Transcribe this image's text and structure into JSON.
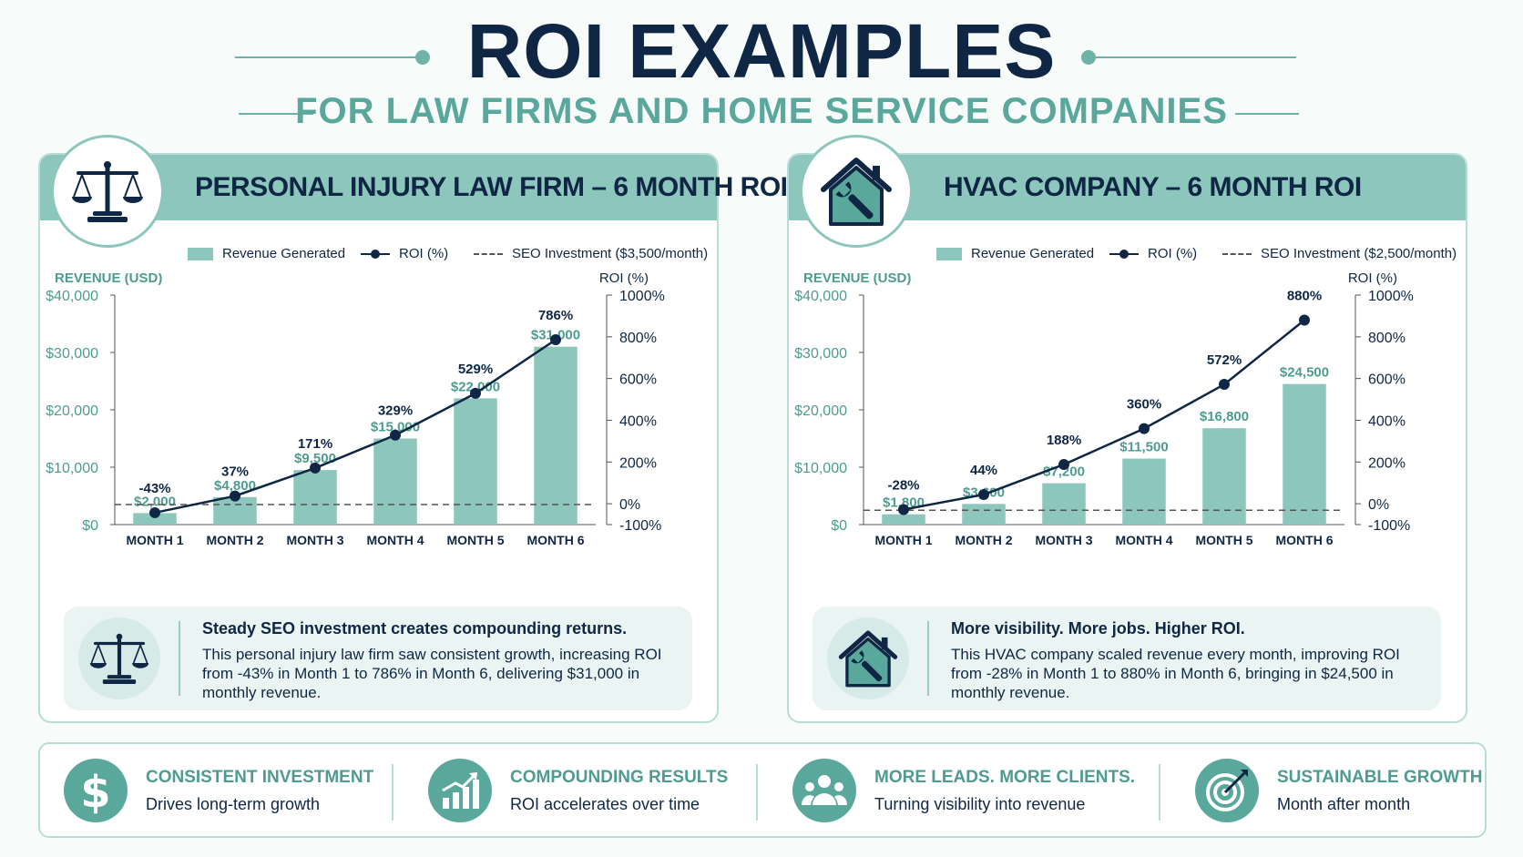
{
  "header": {
    "title": "ROI EXAMPLES",
    "subtitle": "FOR LAW FIRMS AND HOME SERVICE COMPANIES"
  },
  "colors": {
    "navy": "#0f2744",
    "teal": "#8cc6bd",
    "teal_dark": "#5aa89c",
    "axis_text": "#4e9c90"
  },
  "panels": [
    {
      "icon": "scales-of-justice-icon",
      "title": "PERSONAL INJURY LAW FIRM – 6 MONTH ROI",
      "legend": {
        "revenue": "Revenue Generated",
        "roi": "ROI (%)",
        "investment": "SEO Investment ($3,500/month)"
      },
      "note": {
        "heading": "Steady SEO investment creates compounding returns.",
        "body": "This personal injury law firm saw consistent growth, increasing ROI from -43% in Month 1 to 786% in Month 6, delivering $31,000 in monthly revenue."
      }
    },
    {
      "icon": "house-wrench-icon",
      "title": "HVAC COMPANY – 6 MONTH ROI",
      "legend": {
        "revenue": "Revenue Generated",
        "roi": "ROI (%)",
        "investment": "SEO Investment ($2,500/month)"
      },
      "note": {
        "heading": "More visibility. More jobs. Higher ROI.",
        "body": "This HVAC company scaled revenue every month, improving ROI from -28% in Month 1 to 880% in Month 6, bringing in $24,500 in monthly revenue."
      }
    }
  ],
  "chart_data": [
    {
      "type": "bar",
      "categories": [
        "MONTH 1",
        "MONTH 2",
        "MONTH 3",
        "MONTH 4",
        "MONTH 5",
        "MONTH 6"
      ],
      "ylabel": "REVENUE (USD)",
      "y2label": "ROI (%)",
      "ylim": [
        0,
        40000
      ],
      "y2lim": [
        -100,
        1000
      ],
      "yticks": [
        "$0",
        "$10,000",
        "$20,000",
        "$30,000",
        "$40,000"
      ],
      "y2ticks": [
        "-100%",
        "0%",
        "200%",
        "400%",
        "600%",
        "800%",
        "1000%"
      ],
      "series": [
        {
          "name": "Revenue Generated",
          "type": "bar",
          "values": [
            2000,
            4800,
            9500,
            15000,
            22000,
            31000
          ],
          "labels": [
            "$2,000",
            "$4,800",
            "$9,500",
            "$15,000",
            "$22,000",
            "$31,000"
          ]
        },
        {
          "name": "ROI (%)",
          "type": "line",
          "axis": "right",
          "values": [
            -43,
            37,
            171,
            329,
            529,
            786
          ],
          "labels": [
            "-43%",
            "37%",
            "171%",
            "329%",
            "529%",
            "786%"
          ]
        },
        {
          "name": "SEO Investment ($3,500/month)",
          "type": "reference-line",
          "value": 3500
        }
      ],
      "grid": false,
      "legend": "top"
    },
    {
      "type": "bar",
      "categories": [
        "MONTH 1",
        "MONTH 2",
        "MONTH 3",
        "MONTH 4",
        "MONTH 5",
        "MONTH 6"
      ],
      "ylabel": "REVENUE (USD)",
      "y2label": "ROI (%)",
      "ylim": [
        0,
        40000
      ],
      "y2lim": [
        -100,
        1000
      ],
      "yticks": [
        "$0",
        "$10,000",
        "$20,000",
        "$30,000",
        "$40,000"
      ],
      "y2ticks": [
        "-100%",
        "0%",
        "200%",
        "400%",
        "600%",
        "800%",
        "1000%"
      ],
      "series": [
        {
          "name": "Revenue Generated",
          "type": "bar",
          "values": [
            1800,
            3600,
            7200,
            11500,
            16800,
            24500
          ],
          "labels": [
            "$1,800",
            "$3,600",
            "$7,200",
            "$11,500",
            "$16,800",
            "$24,500"
          ]
        },
        {
          "name": "ROI (%)",
          "type": "line",
          "axis": "right",
          "values": [
            -28,
            44,
            188,
            360,
            572,
            880
          ],
          "labels": [
            "-28%",
            "44%",
            "188%",
            "360%",
            "572%",
            "880%"
          ]
        },
        {
          "name": "SEO Investment ($2,500/month)",
          "type": "reference-line",
          "value": 2500
        }
      ],
      "grid": false,
      "legend": "top"
    }
  ],
  "footer": [
    {
      "icon": "dollar-icon",
      "title": "CONSISTENT INVESTMENT",
      "subtitle": "Drives long-term growth"
    },
    {
      "icon": "growth-chart-icon",
      "title": "COMPOUNDING RESULTS",
      "subtitle": "ROI accelerates over time"
    },
    {
      "icon": "people-group-icon",
      "title": "MORE LEADS. MORE CLIENTS.",
      "subtitle": "Turning visibility into revenue"
    },
    {
      "icon": "target-icon",
      "title": "SUSTAINABLE GROWTH",
      "subtitle": "Month after month"
    }
  ]
}
